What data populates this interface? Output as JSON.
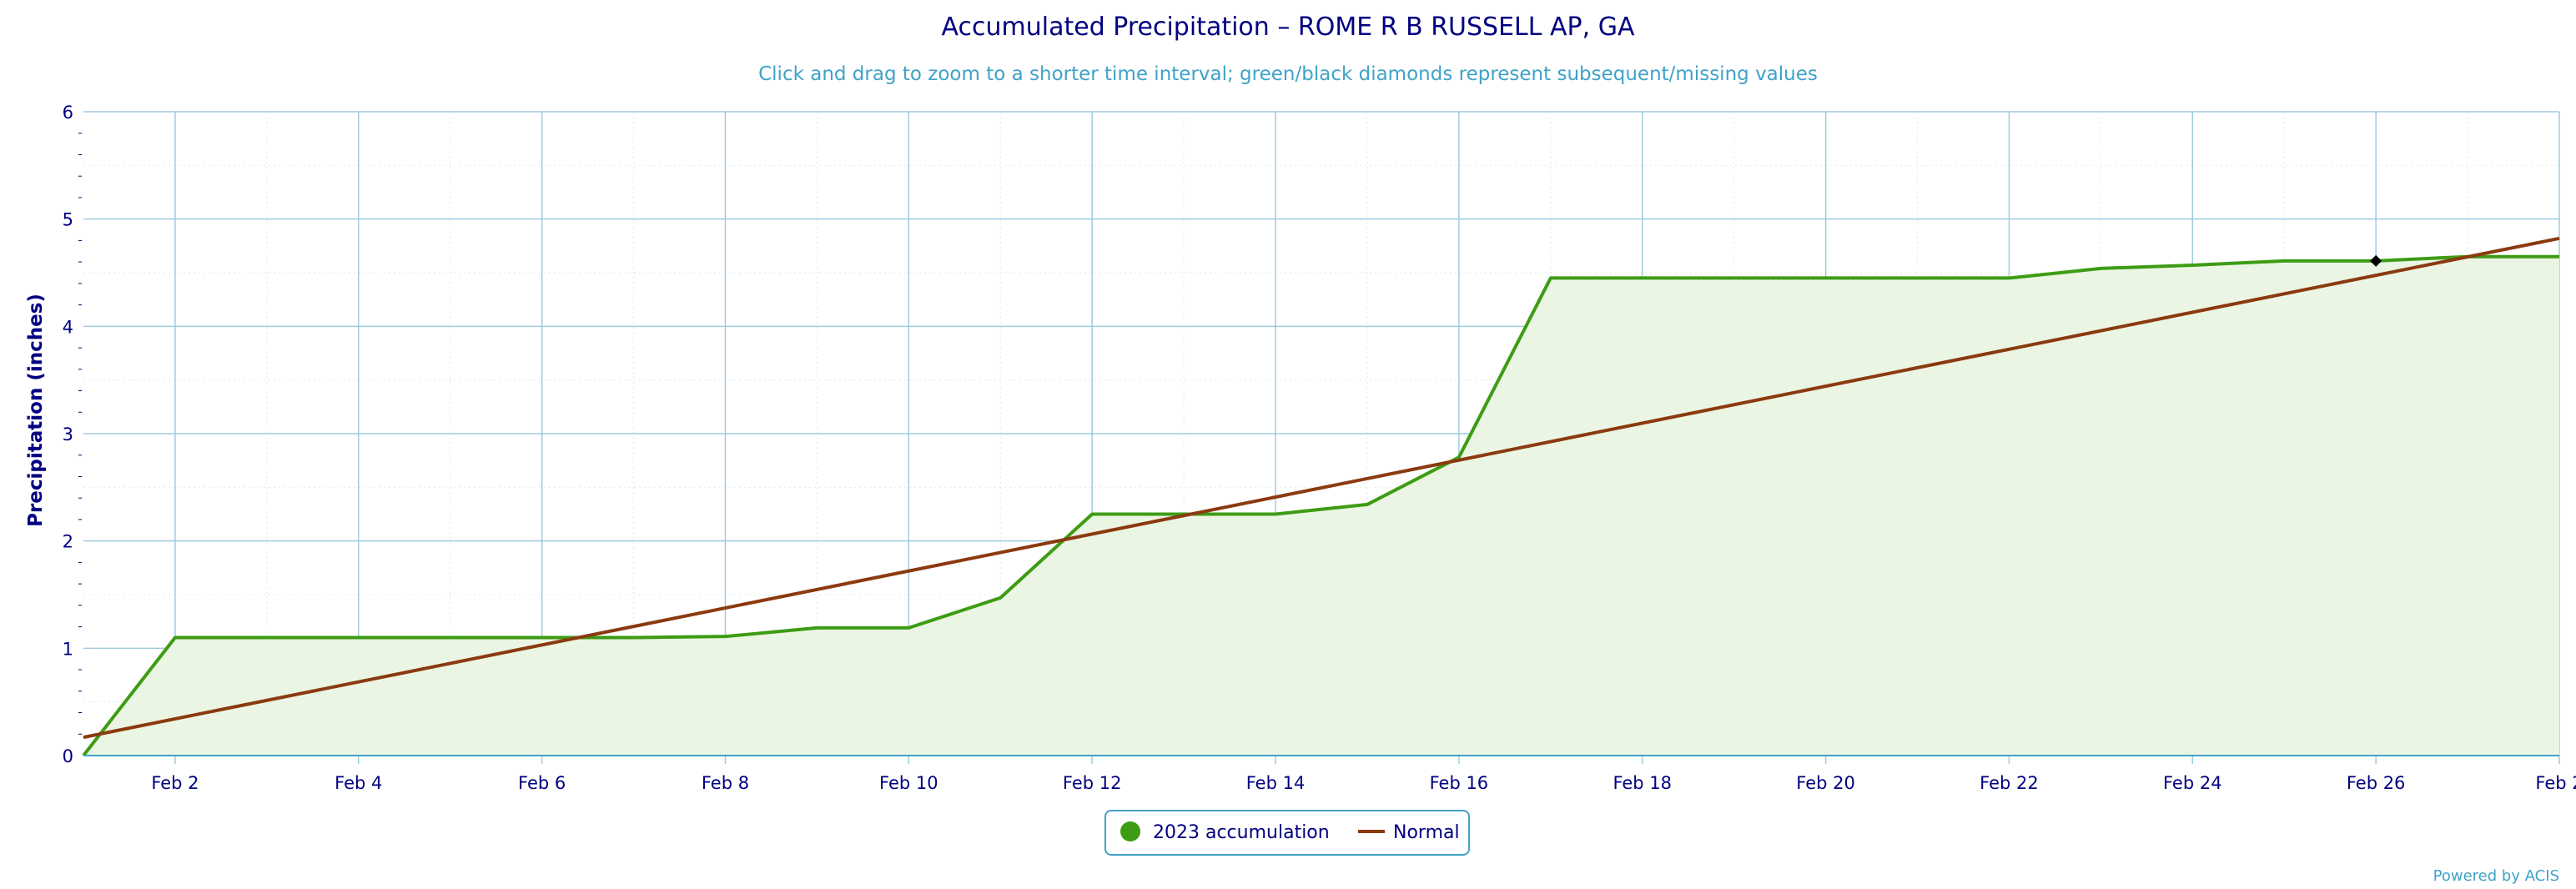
{
  "chart_data": {
    "type": "area",
    "title": "Accumulated Precipitation – ROME R B RUSSELL AP, GA",
    "subtitle": "Click and drag to zoom to a shorter time interval; green/black diamonds represent subsequent/missing values",
    "xlabel": "",
    "ylabel": "Precipitation (inches)",
    "ylim": [
      0,
      6
    ],
    "xlim": [
      1,
      28
    ],
    "yticks": [
      "0",
      "1",
      "2",
      "3",
      "4",
      "5",
      "6"
    ],
    "xticks": [
      {
        "day": 2,
        "label": "Feb 2"
      },
      {
        "day": 4,
        "label": "Feb 4"
      },
      {
        "day": 6,
        "label": "Feb 6"
      },
      {
        "day": 8,
        "label": "Feb 8"
      },
      {
        "day": 10,
        "label": "Feb 10"
      },
      {
        "day": 12,
        "label": "Feb 12"
      },
      {
        "day": 14,
        "label": "Feb 14"
      },
      {
        "day": 16,
        "label": "Feb 16"
      },
      {
        "day": 18,
        "label": "Feb 18"
      },
      {
        "day": 20,
        "label": "Feb 20"
      },
      {
        "day": 22,
        "label": "Feb 22"
      },
      {
        "day": 24,
        "label": "Feb 24"
      },
      {
        "day": 26,
        "label": "Feb 26"
      },
      {
        "day": 28,
        "label": "Feb 2"
      }
    ],
    "grid": true,
    "legend_position": "bottom-center",
    "series": [
      {
        "name": "2023 accumulation",
        "color": "#3d9c14",
        "fill": "#ebf5e3",
        "x": [
          1,
          2,
          3,
          4,
          5,
          6,
          7,
          8,
          9,
          10,
          11,
          12,
          13,
          14,
          15,
          16,
          17,
          18,
          19,
          20,
          21,
          22,
          23,
          24,
          25,
          26,
          27,
          28
        ],
        "y": [
          0.0,
          1.1,
          1.1,
          1.1,
          1.1,
          1.1,
          1.1,
          1.11,
          1.19,
          1.19,
          1.47,
          2.25,
          2.25,
          2.25,
          2.34,
          2.78,
          4.45,
          4.45,
          4.45,
          4.45,
          4.45,
          4.45,
          4.54,
          4.57,
          4.61,
          4.61,
          4.65,
          4.65
        ]
      },
      {
        "name": "Normal",
        "color": "#8b3a0f",
        "x": [
          1,
          28
        ],
        "y": [
          0.17,
          4.82
        ]
      }
    ],
    "missing_markers": [
      {
        "day": 26,
        "value": 4.61
      }
    ]
  },
  "credit": "Powered by ACIS"
}
